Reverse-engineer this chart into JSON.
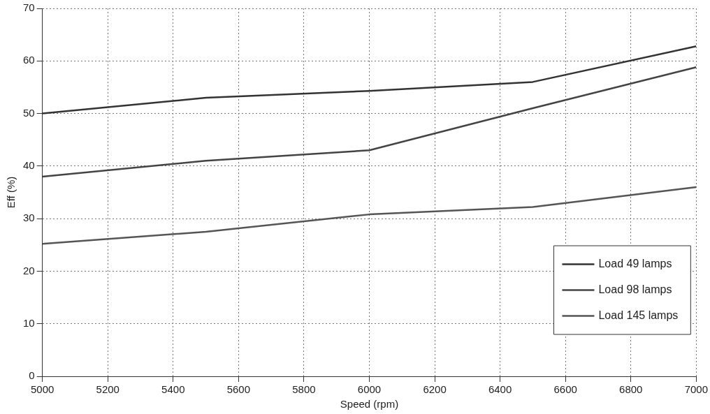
{
  "chart_data": {
    "type": "line",
    "xlabel": "Speed (rpm)",
    "ylabel": "Eff (%)",
    "x": [
      5000,
      5500,
      6000,
      6500,
      7000
    ],
    "series": [
      {
        "name": "Load 49 lamps",
        "color": "#333333",
        "values": [
          50,
          53,
          54.3,
          56,
          62.8
        ]
      },
      {
        "name": "Load 98 lamps",
        "color": "#444444",
        "values": [
          38,
          41,
          43,
          51,
          58.8
        ]
      },
      {
        "name": "Load 145 lamps",
        "color": "#555555",
        "values": [
          25.2,
          27.5,
          30.8,
          32.2,
          36
        ]
      }
    ],
    "xlim": [
      5000,
      7000
    ],
    "xticks": [
      5000,
      5200,
      5400,
      5600,
      5800,
      6000,
      6200,
      6400,
      6600,
      6800,
      7000
    ],
    "ylim": [
      0,
      70
    ],
    "yticks": [
      0,
      10,
      20,
      30,
      40,
      50,
      60,
      70
    ],
    "grid": true,
    "legend": "bottom right",
    "marker": "none",
    "line_style": "solid"
  }
}
